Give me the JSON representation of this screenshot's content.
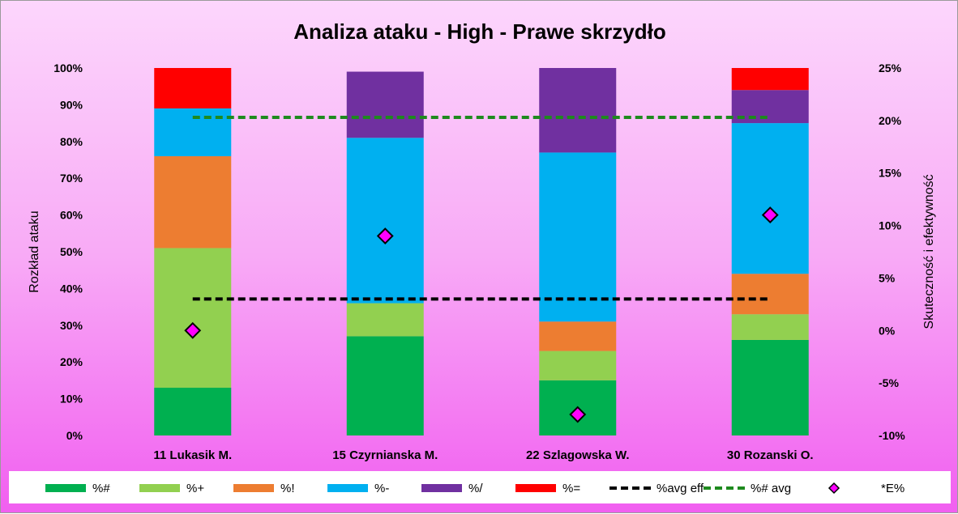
{
  "chart_data": {
    "type": "bar",
    "stacked": true,
    "title": "Analiza ataku - High  - Prawe skrzydło",
    "ylabel": "Rozkład ataku",
    "y2label": "Skuteczność i efektywność",
    "ylim": [
      0,
      100
    ],
    "y2lim": [
      -10,
      25
    ],
    "yticks": [
      "0%",
      "10%",
      "20%",
      "30%",
      "40%",
      "50%",
      "60%",
      "70%",
      "80%",
      "90%",
      "100%"
    ],
    "y2ticks": [
      "-10%",
      "-5%",
      "0%",
      "5%",
      "10%",
      "15%",
      "20%",
      "25%"
    ],
    "categories": [
      "11 Lukasik M.",
      "15 Czyrnianska M.",
      "22 Szlagowska W.",
      "30 Rozanski O."
    ],
    "series": [
      {
        "name": "%#",
        "color": "#00b050",
        "values": [
          13,
          27,
          15,
          26
        ]
      },
      {
        "name": "%+",
        "color": "#92d050",
        "values": [
          38,
          9,
          8,
          7
        ]
      },
      {
        "name": "%!",
        "color": "#ed7d31",
        "values": [
          25,
          0,
          8,
          11
        ]
      },
      {
        "name": "%-",
        "color": "#00b0f0",
        "values": [
          13,
          45,
          46,
          41
        ]
      },
      {
        "name": "%/",
        "color": "#7030a0",
        "values": [
          0,
          18,
          23,
          9
        ]
      },
      {
        "name": "%=",
        "color": "#ff0000",
        "values": [
          11,
          0,
          0,
          6
        ]
      }
    ],
    "lines": [
      {
        "name": "%avg eff",
        "color": "#000000",
        "style": "dashed",
        "axis": "secondary",
        "value": 3
      },
      {
        "name": "%# avg",
        "color": "#1e8a1e",
        "style": "dashed",
        "axis": "secondary",
        "value": 20.3
      }
    ],
    "markers": {
      "name": "*E%",
      "color": "#ff00ff",
      "axis": "secondary",
      "values": [
        0,
        9,
        -8,
        11
      ]
    },
    "grid": false,
    "legend_position": "bottom"
  }
}
